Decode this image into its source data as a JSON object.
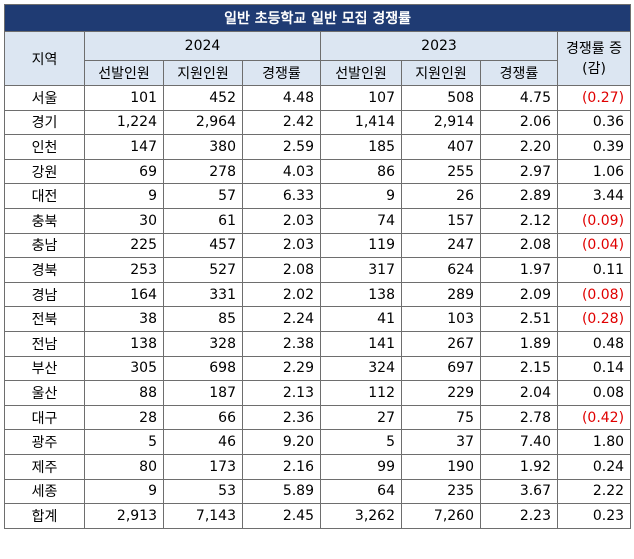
{
  "title": "일반 초등학교 일반 모집 경쟁률",
  "headers": {
    "region": "지역",
    "year_a": "2024",
    "year_b": "2023",
    "change": "경쟁률 증(감)",
    "sub": [
      "선발인원",
      "지원인원",
      "경쟁률",
      "선발인원",
      "지원인원",
      "경쟁률"
    ]
  },
  "negative_color": "#e00000",
  "header_color": "#1f3b73",
  "rows": [
    {
      "region": "서울",
      "c": [
        "101",
        "452",
        "4.48",
        "107",
        "508",
        "4.75",
        "(0.27)"
      ],
      "neg": true
    },
    {
      "region": "경기",
      "c": [
        "1,224",
        "2,964",
        "2.42",
        "1,414",
        "2,914",
        "2.06",
        "0.36"
      ],
      "neg": false
    },
    {
      "region": "인천",
      "c": [
        "147",
        "380",
        "2.59",
        "185",
        "407",
        "2.20",
        "0.39"
      ],
      "neg": false
    },
    {
      "region": "강원",
      "c": [
        "69",
        "278",
        "4.03",
        "86",
        "255",
        "2.97",
        "1.06"
      ],
      "neg": false
    },
    {
      "region": "대전",
      "c": [
        "9",
        "57",
        "6.33",
        "9",
        "26",
        "2.89",
        "3.44"
      ],
      "neg": false
    },
    {
      "region": "충북",
      "c": [
        "30",
        "61",
        "2.03",
        "74",
        "157",
        "2.12",
        "(0.09)"
      ],
      "neg": true
    },
    {
      "region": "충남",
      "c": [
        "225",
        "457",
        "2.03",
        "119",
        "247",
        "2.08",
        "(0.04)"
      ],
      "neg": true
    },
    {
      "region": "경북",
      "c": [
        "253",
        "527",
        "2.08",
        "317",
        "624",
        "1.97",
        "0.11"
      ],
      "neg": false
    },
    {
      "region": "경남",
      "c": [
        "164",
        "331",
        "2.02",
        "138",
        "289",
        "2.09",
        "(0.08)"
      ],
      "neg": true
    },
    {
      "region": "전북",
      "c": [
        "38",
        "85",
        "2.24",
        "41",
        "103",
        "2.51",
        "(0.28)"
      ],
      "neg": true
    },
    {
      "region": "전남",
      "c": [
        "138",
        "328",
        "2.38",
        "141",
        "267",
        "1.89",
        "0.48"
      ],
      "neg": false
    },
    {
      "region": "부산",
      "c": [
        "305",
        "698",
        "2.29",
        "324",
        "697",
        "2.15",
        "0.14"
      ],
      "neg": false
    },
    {
      "region": "울산",
      "c": [
        "88",
        "187",
        "2.13",
        "112",
        "229",
        "2.04",
        "0.08"
      ],
      "neg": false
    },
    {
      "region": "대구",
      "c": [
        "28",
        "66",
        "2.36",
        "27",
        "75",
        "2.78",
        "(0.42)"
      ],
      "neg": true
    },
    {
      "region": "광주",
      "c": [
        "5",
        "46",
        "9.20",
        "5",
        "37",
        "7.40",
        "1.80"
      ],
      "neg": false
    },
    {
      "region": "제주",
      "c": [
        "80",
        "173",
        "2.16",
        "99",
        "190",
        "1.92",
        "0.24"
      ],
      "neg": false
    },
    {
      "region": "세종",
      "c": [
        "9",
        "53",
        "5.89",
        "64",
        "235",
        "3.67",
        "2.22"
      ],
      "neg": false
    },
    {
      "region": "합계",
      "c": [
        "2,913",
        "7,143",
        "2.45",
        "3,262",
        "7,260",
        "2.23",
        "0.23"
      ],
      "neg": false
    }
  ]
}
